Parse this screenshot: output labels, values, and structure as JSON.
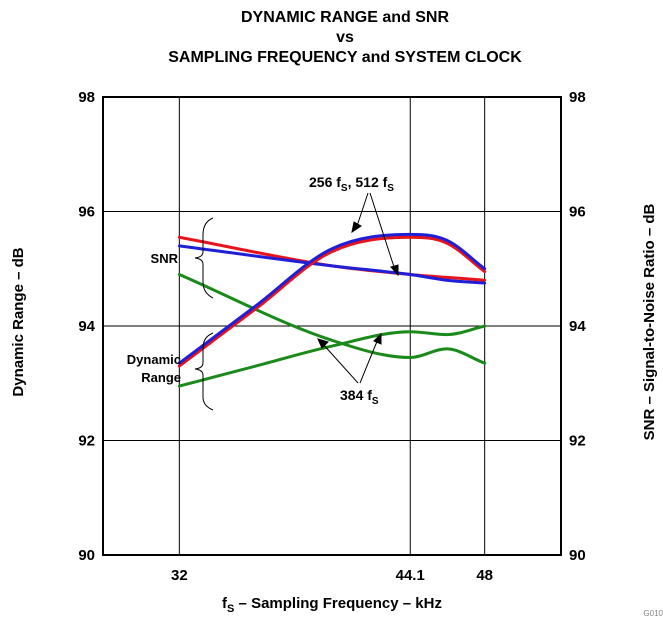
{
  "chart_data": {
    "type": "line",
    "title": [
      "DYNAMIC RANGE and SNR",
      "vs",
      "SAMPLING FREQUENCY and SYSTEM CLOCK"
    ],
    "xlabel": {
      "main": "f",
      "sub": "S",
      "rest": " – Sampling Frequency – kHz"
    },
    "ylabel_left": "Dynamic Range – dB",
    "ylabel_right": "SNR – Signal-to-Noise Ratio – dB",
    "x_ticks": [
      {
        "value": 32,
        "label": "32"
      },
      {
        "value": 44.1,
        "label": "44.1"
      },
      {
        "value": 48,
        "label": "48"
      }
    ],
    "y_ticks": [
      90,
      92,
      94,
      96,
      98
    ],
    "y_tick_labels": [
      "90",
      "92",
      "94",
      "96",
      "98"
    ],
    "xlim": [
      28,
      52
    ],
    "ylim": [
      90,
      98
    ],
    "grid": true,
    "series": [
      {
        "color": "#e8141c",
        "group": "SNR",
        "x": [
          32,
          40,
          44.1,
          46,
          48
        ],
        "y": [
          95.55,
          95.05,
          94.9,
          94.85,
          94.8
        ]
      },
      {
        "color": "#1f1fd8",
        "group": "SNR",
        "x": [
          32,
          40,
          44.1,
          46,
          48
        ],
        "y": [
          95.4,
          95.05,
          94.9,
          94.8,
          94.75
        ]
      },
      {
        "color": "#1a8a1a",
        "group": "SNR",
        "x": [
          32,
          40,
          44.1,
          46,
          48
        ],
        "y": [
          94.9,
          93.75,
          93.45,
          93.6,
          93.35
        ]
      },
      {
        "color": "#e8141c",
        "group": "Dynamic Range",
        "x": [
          32,
          36,
          40,
          44.1,
          46,
          48
        ],
        "y": [
          93.3,
          94.3,
          95.3,
          95.55,
          95.45,
          94.95
        ]
      },
      {
        "color": "#1f1fd8",
        "group": "Dynamic Range",
        "x": [
          32,
          36,
          40,
          44.1,
          46,
          48
        ],
        "y": [
          93.35,
          94.35,
          95.35,
          95.6,
          95.5,
          95.0
        ]
      },
      {
        "color": "#1a8a1a",
        "group": "Dynamic Range",
        "x": [
          32,
          36,
          40,
          44.1,
          46,
          48
        ],
        "y": [
          92.95,
          93.3,
          93.65,
          93.9,
          93.85,
          94.0
        ]
      }
    ],
    "annotations": {
      "snr_label": "SNR",
      "dynamic_range_label": [
        "Dynamic",
        "Range"
      ],
      "clock_256_512": {
        "a": "256 f",
        "a_sub": "S",
        "b": ", 512 f",
        "b_sub": "S"
      },
      "clock_384": {
        "a": "384 f",
        "a_sub": "S"
      }
    },
    "figure_id": "G010"
  }
}
